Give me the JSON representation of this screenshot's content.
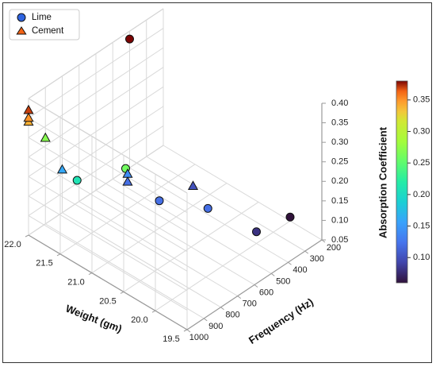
{
  "chart_data": {
    "type": "scatter",
    "projection": "3d",
    "xlabel": "Frequency (Hz)",
    "ylabel": "Weight (gm)",
    "zlabel": "Absorption Coefficient",
    "xlim": [
      200,
      1000
    ],
    "ylim": [
      19.5,
      22.0
    ],
    "zlim": [
      0.05,
      0.4
    ],
    "xticks": [
      "200",
      "300",
      "400",
      "500",
      "600",
      "700",
      "800",
      "900",
      "1000"
    ],
    "yticks": [
      "19.5",
      "20.0",
      "20.5",
      "21.0",
      "21.5",
      "22.0"
    ],
    "zticks": [
      "0.05",
      "0.10",
      "0.15",
      "0.20",
      "0.25",
      "0.30",
      "0.35",
      "0.40"
    ],
    "grid": true,
    "legend_position": "top-left",
    "colorbar": {
      "label": "Absorption Coefficient",
      "colormap": "turbo",
      "range": [
        0.06,
        0.38
      ],
      "ticks": [
        "0.10",
        "0.15",
        "0.20",
        "0.25",
        "0.30",
        "0.35"
      ]
    },
    "series": [
      {
        "name": "Lime",
        "marker": "circle",
        "points": [
          {
            "x": 200,
            "y": 20.0,
            "z": 0.06
          },
          {
            "x": 400,
            "y": 20.0,
            "z": 0.08
          },
          {
            "x": 500,
            "y": 20.5,
            "z": 0.12
          },
          {
            "x": 600,
            "y": 21.0,
            "z": 0.12
          },
          {
            "x": 800,
            "y": 21.0,
            "z": 0.26
          },
          {
            "x": 900,
            "y": 21.5,
            "z": 0.21
          },
          {
            "x": 400,
            "y": 22.0,
            "z": 0.38
          }
        ]
      },
      {
        "name": "Cement",
        "marker": "triangle",
        "points": [
          {
            "x": 400,
            "y": 21.0,
            "z": 0.1
          },
          {
            "x": 600,
            "y": 21.5,
            "z": 0.12
          },
          {
            "x": 600,
            "y": 21.5,
            "z": 0.14
          },
          {
            "x": 800,
            "y": 22.0,
            "z": 0.16
          },
          {
            "x": 900,
            "y": 22.0,
            "z": 0.27
          },
          {
            "x": 1000,
            "y": 22.0,
            "z": 0.37
          },
          {
            "x": 1000,
            "y": 22.0,
            "z": 0.34
          },
          {
            "x": 1000,
            "y": 22.0,
            "z": 0.35
          }
        ]
      }
    ]
  }
}
